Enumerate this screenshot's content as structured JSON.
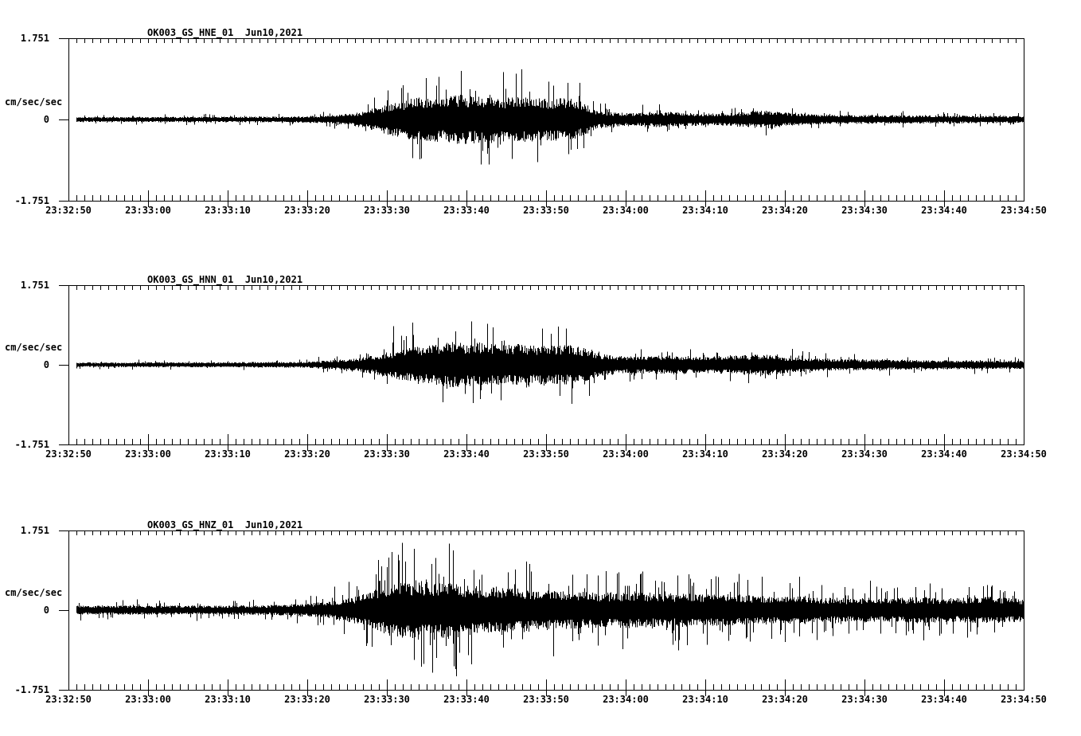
{
  "page": {
    "background": "#ffffff",
    "foreground": "#000000"
  },
  "chart_data": [
    {
      "type": "line",
      "title": "OK003_GS_HNE_01  Jun10,2021",
      "station": "OK003_GS_HNE_01",
      "date": "Jun10,2021",
      "ylabel": "cm/sec/sec",
      "ylim": [
        -1.751,
        1.751
      ],
      "ytick_labels": [
        "1.751",
        "0",
        "-1.751"
      ],
      "x_start": "23:32:50",
      "x_end": "23:34:50",
      "x_span_seconds": 120,
      "major_tick_seconds": 10,
      "minor_tick_seconds": 1,
      "grid": false,
      "legend_position": "none",
      "x_tick_labels": [
        "23:32:50",
        "23:33:00",
        "23:33:10",
        "23:33:20",
        "23:33:30",
        "23:33:40",
        "23:33:50",
        "23:34:00",
        "23:34:10",
        "23:34:20",
        "23:34:30",
        "23:34:40",
        "23:34:50"
      ],
      "envelope": [
        [
          0,
          0.055
        ],
        [
          20,
          0.06
        ],
        [
          28,
          0.065
        ],
        [
          32,
          0.08
        ],
        [
          35,
          0.12
        ],
        [
          37,
          0.18
        ],
        [
          39,
          0.28
        ],
        [
          41,
          0.37
        ],
        [
          43,
          0.45
        ],
        [
          45,
          0.5
        ],
        [
          47,
          0.47
        ],
        [
          49,
          0.55
        ],
        [
          51,
          0.49
        ],
        [
          53,
          0.54
        ],
        [
          55,
          0.47
        ],
        [
          57,
          0.51
        ],
        [
          60,
          0.45
        ],
        [
          63,
          0.47
        ],
        [
          64.5,
          0.38
        ],
        [
          66,
          0.22
        ],
        [
          68,
          0.16
        ],
        [
          71,
          0.14
        ],
        [
          74,
          0.17
        ],
        [
          77,
          0.15
        ],
        [
          80,
          0.13
        ],
        [
          83,
          0.14
        ],
        [
          86,
          0.18
        ],
        [
          88.5,
          0.2
        ],
        [
          90,
          0.15
        ],
        [
          93,
          0.12
        ],
        [
          96,
          0.1
        ],
        [
          100,
          0.095
        ],
        [
          105,
          0.09
        ],
        [
          110,
          0.085
        ],
        [
          115,
          0.08
        ],
        [
          120,
          0.075
        ]
      ],
      "spikes": [
        [
          49.3,
          1.05
        ],
        [
          52.8,
          -0.97
        ],
        [
          56.2,
          0.99
        ],
        [
          56.9,
          1.08
        ],
        [
          44.1,
          -0.86
        ],
        [
          58.9,
          -0.92
        ],
        [
          46.5,
          0.92
        ]
      ],
      "seed": 137,
      "spike_prob": 0.08,
      "spike_max": 1.2
    },
    {
      "type": "line",
      "title": "OK003_GS_HNN_01  Jun10,2021",
      "station": "OK003_GS_HNN_01",
      "date": "Jun10,2021",
      "ylabel": "cm/sec/sec",
      "ylim": [
        -1.751,
        1.751
      ],
      "ytick_labels": [
        "1.751",
        "0",
        "-1.751"
      ],
      "x_start": "23:32:50",
      "x_end": "23:34:50",
      "x_span_seconds": 120,
      "major_tick_seconds": 10,
      "minor_tick_seconds": 1,
      "grid": false,
      "legend_position": "none",
      "x_tick_labels": [
        "23:32:50",
        "23:33:00",
        "23:33:10",
        "23:33:20",
        "23:33:30",
        "23:33:40",
        "23:33:50",
        "23:34:00",
        "23:34:10",
        "23:34:20",
        "23:34:30",
        "23:34:40",
        "23:34:50"
      ],
      "envelope": [
        [
          0,
          0.05
        ],
        [
          25,
          0.06
        ],
        [
          30,
          0.07
        ],
        [
          33,
          0.1
        ],
        [
          36,
          0.14
        ],
        [
          38,
          0.2
        ],
        [
          40,
          0.28
        ],
        [
          43,
          0.38
        ],
        [
          46,
          0.44
        ],
        [
          48,
          0.5
        ],
        [
          50,
          0.46
        ],
        [
          52,
          0.5
        ],
        [
          54,
          0.44
        ],
        [
          57,
          0.46
        ],
        [
          60,
          0.42
        ],
        [
          63,
          0.44
        ],
        [
          65,
          0.36
        ],
        [
          67,
          0.24
        ],
        [
          70,
          0.18
        ],
        [
          73,
          0.2
        ],
        [
          76,
          0.22
        ],
        [
          79,
          0.18
        ],
        [
          82,
          0.2
        ],
        [
          85,
          0.22
        ],
        [
          88,
          0.24
        ],
        [
          90,
          0.18
        ],
        [
          93,
          0.15
        ],
        [
          96,
          0.13
        ],
        [
          100,
          0.12
        ],
        [
          105,
          0.11
        ],
        [
          110,
          0.1
        ],
        [
          115,
          0.095
        ],
        [
          120,
          0.09
        ]
      ],
      "spikes": [
        [
          43.2,
          0.93
        ],
        [
          50.6,
          0.95
        ],
        [
          47.0,
          -0.82
        ],
        [
          54.3,
          -0.78
        ],
        [
          40.8,
          0.85
        ],
        [
          59.5,
          0.8
        ]
      ],
      "seed": 311,
      "spike_prob": 0.08,
      "spike_max": 1.2
    },
    {
      "type": "line",
      "title": "OK003_GS_HNZ_01  Jun10,2021",
      "station": "OK003_GS_HNZ_01",
      "date": "Jun10,2021",
      "ylabel": "cm/sec/sec",
      "ylim": [
        -1.751,
        1.751
      ],
      "ytick_labels": [
        "1.751",
        "0",
        "-1.751"
      ],
      "x_start": "23:32:50",
      "x_end": "23:34:50",
      "x_span_seconds": 120,
      "major_tick_seconds": 10,
      "minor_tick_seconds": 1,
      "grid": false,
      "legend_position": "none",
      "x_tick_labels": [
        "23:32:50",
        "23:33:00",
        "23:33:10",
        "23:33:20",
        "23:33:30",
        "23:33:40",
        "23:33:50",
        "23:34:00",
        "23:34:10",
        "23:34:20",
        "23:34:30",
        "23:34:40",
        "23:34:50"
      ],
      "envelope": [
        [
          0,
          0.1
        ],
        [
          20,
          0.1
        ],
        [
          25,
          0.11
        ],
        [
          28,
          0.13
        ],
        [
          31,
          0.16
        ],
        [
          34,
          0.22
        ],
        [
          36,
          0.3
        ],
        [
          38,
          0.42
        ],
        [
          40,
          0.55
        ],
        [
          42,
          0.62
        ],
        [
          44,
          0.66
        ],
        [
          46,
          0.6
        ],
        [
          48,
          0.64
        ],
        [
          50,
          0.55
        ],
        [
          53,
          0.5
        ],
        [
          56,
          0.48
        ],
        [
          59,
          0.45
        ],
        [
          62,
          0.42
        ],
        [
          65,
          0.4
        ],
        [
          68,
          0.38
        ],
        [
          71,
          0.4
        ],
        [
          74,
          0.36
        ],
        [
          77,
          0.38
        ],
        [
          80,
          0.34
        ],
        [
          83,
          0.36
        ],
        [
          86,
          0.32
        ],
        [
          89,
          0.3
        ],
        [
          92,
          0.32
        ],
        [
          95,
          0.28
        ],
        [
          98,
          0.26
        ],
        [
          101,
          0.28
        ],
        [
          104,
          0.26
        ],
        [
          107,
          0.3
        ],
        [
          110,
          0.26
        ],
        [
          113,
          0.28
        ],
        [
          116,
          0.3
        ],
        [
          119,
          0.26
        ],
        [
          120,
          0.26
        ]
      ],
      "spikes": [
        [
          41.9,
          1.48
        ],
        [
          48.7,
          -1.45
        ],
        [
          40.6,
          1.28
        ],
        [
          44.6,
          -1.18
        ],
        [
          43.4,
          1.35
        ],
        [
          46.2,
          -1.05
        ],
        [
          38.9,
          1.1
        ]
      ],
      "seed": 523,
      "spike_prob": 0.14,
      "spike_max": 1.5
    }
  ]
}
